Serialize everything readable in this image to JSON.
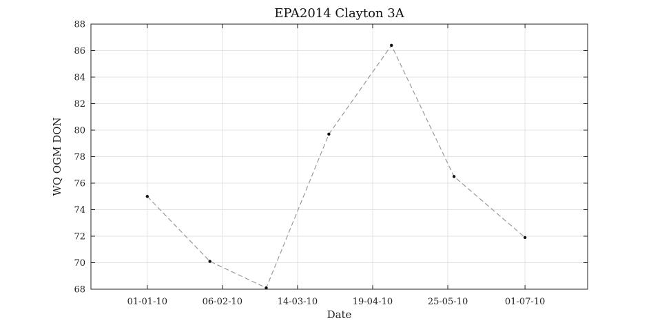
{
  "chart_data": {
    "type": "line",
    "title": "EPA2014 Clayton 3A",
    "xlabel": "Date",
    "ylabel": "WQ OGM DON",
    "x_tick_labels": [
      "01-01-10",
      "06-02-10",
      "14-03-10",
      "19-04-10",
      "25-05-10",
      "01-07-10"
    ],
    "x_ticks": [
      "2010-01-01",
      "2010-02-06",
      "2010-03-14",
      "2010-04-19",
      "2010-05-25",
      "2010-07-01"
    ],
    "xlim": [
      "2009-12-05",
      "2010-07-31"
    ],
    "y_ticks": [
      68,
      70,
      72,
      74,
      76,
      78,
      80,
      82,
      84,
      86,
      88
    ],
    "ylim": [
      68,
      88
    ],
    "grid": true,
    "series": [
      {
        "line_style": "dashed",
        "color": "#999999",
        "marker_color": "#111111",
        "points": [
          {
            "x": "2010-01-01",
            "y": 75.0
          },
          {
            "x": "2010-01-31",
            "y": 70.1
          },
          {
            "x": "2010-02-27",
            "y": 68.1
          },
          {
            "x": "2010-03-29",
            "y": 79.7
          },
          {
            "x": "2010-04-28",
            "y": 86.4
          },
          {
            "x": "2010-05-28",
            "y": 76.5
          },
          {
            "x": "2010-07-01",
            "y": 71.9
          }
        ]
      }
    ]
  }
}
